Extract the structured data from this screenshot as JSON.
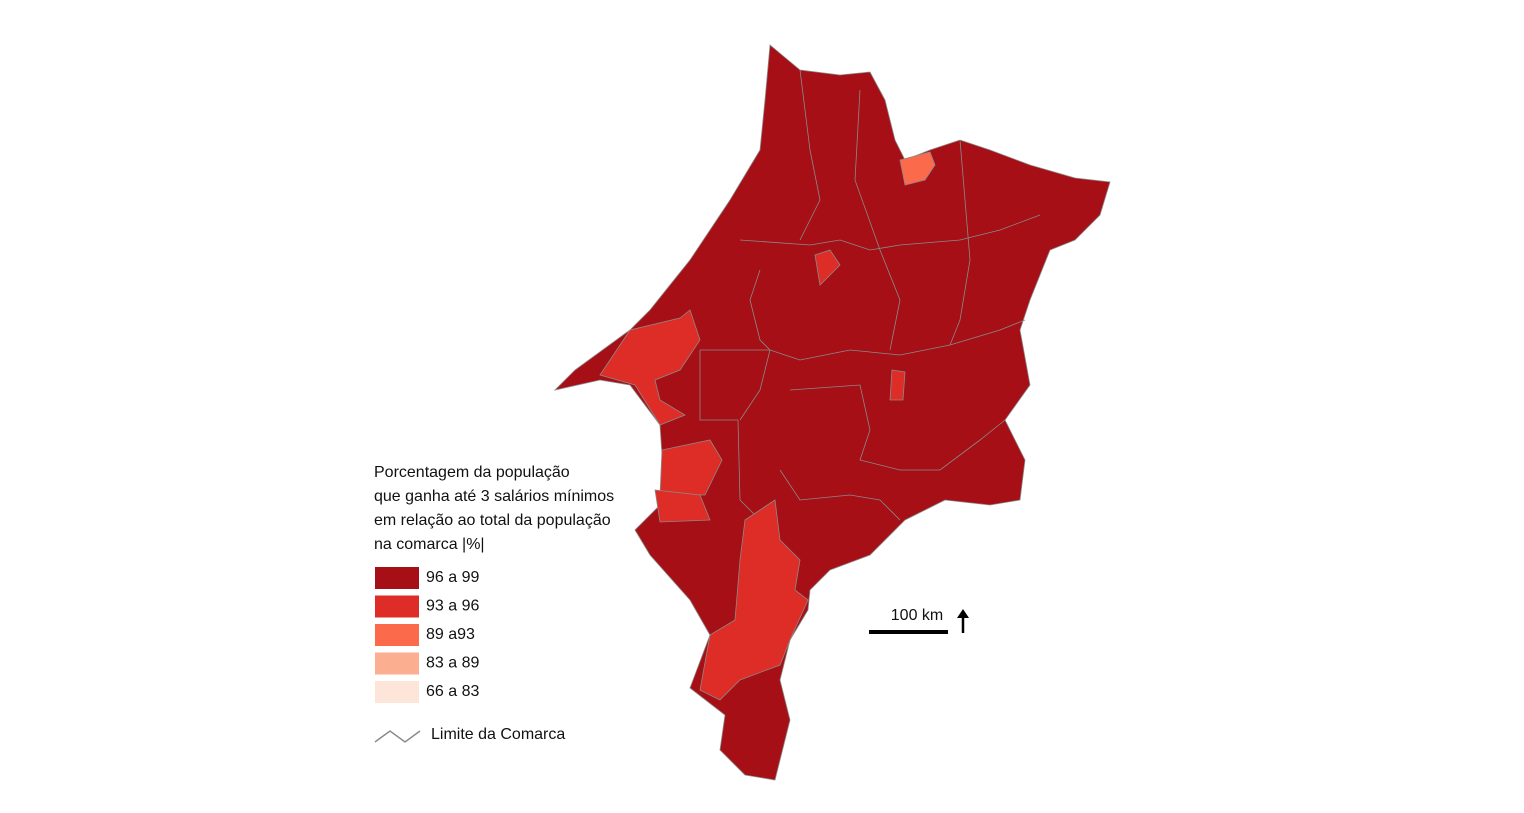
{
  "legend": {
    "title_lines": [
      "Porcentagem da população",
      "que ganha até 3 salários mínimos",
      "em relação ao total da população",
      "na comarca |%|"
    ],
    "items": [
      {
        "label": "96 a 99",
        "color": "#a50f15"
      },
      {
        "label": "93 a 96",
        "color": "#de2d26"
      },
      {
        "label": "89 a93",
        "color": "#fb6a4a"
      },
      {
        "label": "83 a 89",
        "color": "#fcae91"
      },
      {
        "label": "66 a 83",
        "color": "#fee5d9"
      }
    ],
    "boundary_label": "Limite da Comarca"
  },
  "scale_bar": {
    "label": "100 km"
  }
}
